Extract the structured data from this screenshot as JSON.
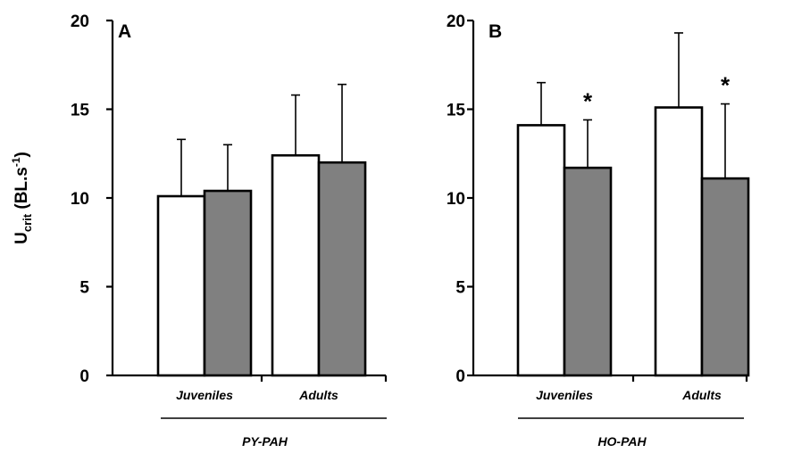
{
  "chart_data": [
    {
      "type": "bar",
      "panel_label": "A",
      "categories": [
        "Juveniles",
        "Adults"
      ],
      "group_label": "PY-PAH",
      "series": [
        {
          "color": "#ffffff",
          "values": [
            10.1,
            12.4
          ],
          "errors": [
            3.2,
            3.4
          ]
        },
        {
          "color": "#808080",
          "values": [
            10.4,
            12.0
          ],
          "errors": [
            2.6,
            4.4
          ]
        }
      ],
      "significance": [
        "",
        ""
      ],
      "ylim": [
        0,
        20
      ],
      "yticks": [
        "0",
        "5",
        "10",
        "15",
        "20"
      ]
    },
    {
      "type": "bar",
      "panel_label": "B",
      "categories": [
        "Juveniles",
        "Adults"
      ],
      "group_label": "HO-PAH",
      "series": [
        {
          "color": "#ffffff",
          "values": [
            14.1,
            15.1
          ],
          "errors": [
            2.4,
            4.2
          ]
        },
        {
          "color": "#808080",
          "values": [
            11.7,
            11.1
          ],
          "errors": [
            2.7,
            4.2
          ]
        }
      ],
      "significance": [
        "*",
        "*"
      ],
      "ylim": [
        0,
        20
      ],
      "yticks": [
        "0",
        "5",
        "10",
        "15",
        "20"
      ]
    }
  ],
  "ylabel": {
    "main": "U",
    "sub": "crit",
    "rest": " (BL.s",
    "sup": "-1",
    "close": ")"
  }
}
